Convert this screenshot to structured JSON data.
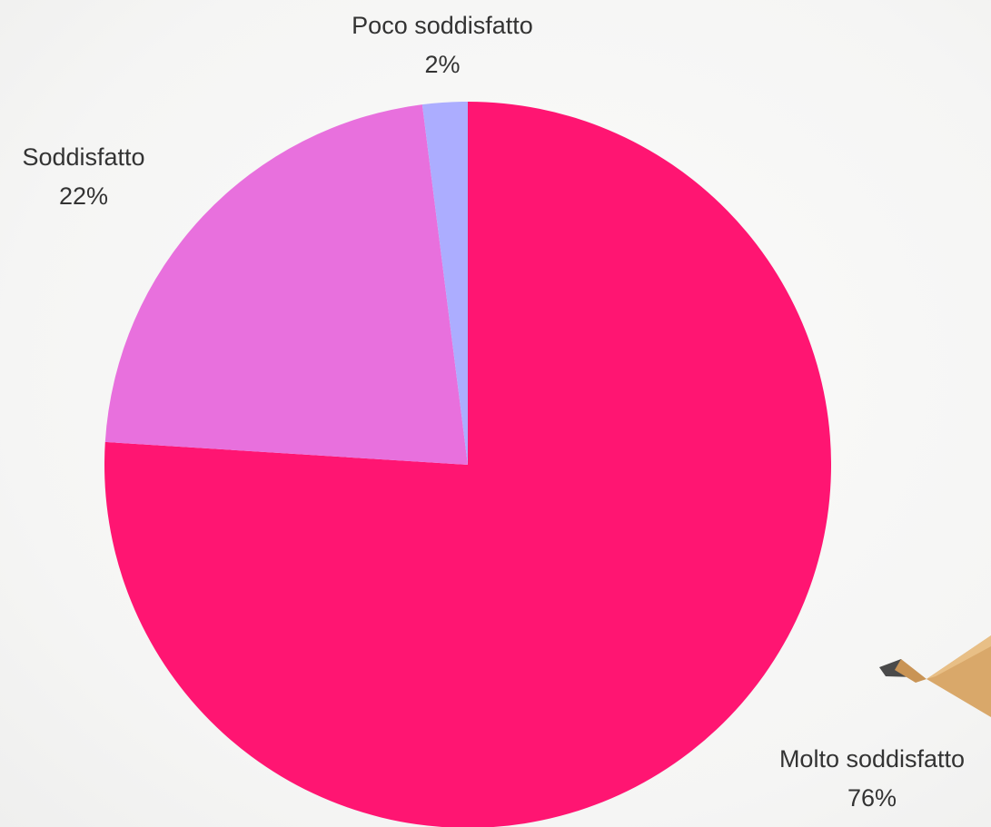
{
  "chart_data": {
    "type": "pie",
    "start_angle": "12 o'clock, clockwise",
    "slices": [
      {
        "label": "Molto soddisfatto",
        "value": 76,
        "value_label": "76%",
        "color": "#ff1572"
      },
      {
        "label": "Soddisfatto",
        "value": 22,
        "value_label": "22%",
        "color": "#e870dd"
      },
      {
        "label": "Poco soddisfatto",
        "value": 2,
        "value_label": "2%",
        "color": "#acadff"
      }
    ],
    "label_color": "#333333",
    "background_color": "#f7f7f6"
  }
}
